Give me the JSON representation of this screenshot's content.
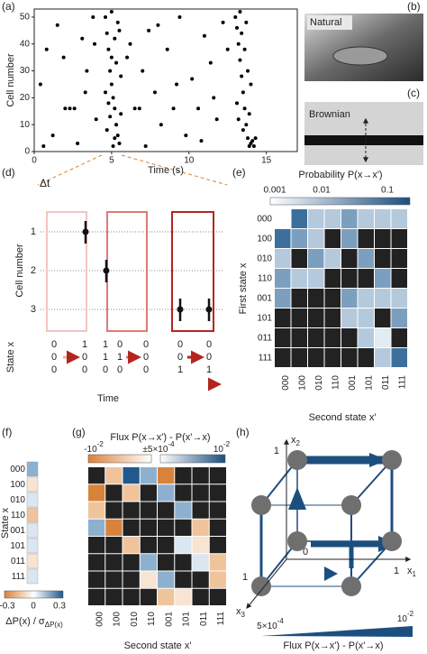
{
  "chart_data": {
    "type": "scatter",
    "panel": "(a)",
    "xlabel": "Time (s)",
    "ylabel": "Cell number",
    "xlim": [
      0,
      17
    ],
    "ylim": [
      0,
      53
    ],
    "xticks": [
      0,
      5,
      10,
      15
    ],
    "yticks": [
      0,
      10,
      20,
      30,
      40,
      50
    ],
    "color": "#000000",
    "points": [
      [
        0.4,
        25
      ],
      [
        0.8,
        38
      ],
      [
        1.5,
        47
      ],
      [
        2.0,
        16
      ],
      [
        2.3,
        16
      ],
      [
        2.6,
        16
      ],
      [
        3.1,
        42
      ],
      [
        3.4,
        30
      ],
      [
        1.2,
        6
      ],
      [
        2.8,
        3
      ],
      [
        3.8,
        50
      ],
      [
        3.9,
        40
      ],
      [
        0.6,
        2
      ],
      [
        1.9,
        35
      ],
      [
        3.3,
        22
      ],
      [
        4.0,
        12
      ],
      [
        4.6,
        50
      ],
      [
        4.7,
        44
      ],
      [
        4.8,
        38
      ],
      [
        4.9,
        30
      ],
      [
        5.0,
        25
      ],
      [
        5.1,
        20
      ],
      [
        5.2,
        16
      ],
      [
        5.3,
        10
      ],
      [
        5.4,
        6
      ],
      [
        5.5,
        3
      ],
      [
        4.7,
        8
      ],
      [
        4.9,
        13
      ],
      [
        5.0,
        35
      ],
      [
        5.2,
        42
      ],
      [
        5.4,
        48
      ],
      [
        5.6,
        28
      ],
      [
        4.8,
        18
      ],
      [
        5.1,
        2
      ],
      [
        5.3,
        33
      ],
      [
        5.5,
        45
      ],
      [
        4.6,
        22
      ],
      [
        5.0,
        52
      ],
      [
        5.2,
        5
      ],
      [
        5.6,
        14
      ],
      [
        6.2,
        40
      ],
      [
        6.5,
        16
      ],
      [
        6.8,
        16
      ],
      [
        7.0,
        30
      ],
      [
        7.4,
        45
      ],
      [
        7.8,
        22
      ],
      [
        8.2,
        10
      ],
      [
        8.6,
        38
      ],
      [
        9.0,
        16
      ],
      [
        9.4,
        50
      ],
      [
        9.8,
        6
      ],
      [
        10.2,
        27
      ],
      [
        10.6,
        16
      ],
      [
        11.0,
        43
      ],
      [
        11.4,
        33
      ],
      [
        11.8,
        12
      ],
      [
        12.2,
        48
      ],
      [
        6.0,
        35
      ],
      [
        7.2,
        2
      ],
      [
        8.0,
        47
      ],
      [
        9.2,
        25
      ],
      [
        10.8,
        4
      ],
      [
        11.6,
        20
      ],
      [
        12.5,
        38
      ],
      [
        13.0,
        50
      ],
      [
        13.1,
        46
      ],
      [
        13.2,
        40
      ],
      [
        13.3,
        34
      ],
      [
        13.4,
        28
      ],
      [
        13.5,
        22
      ],
      [
        13.6,
        16
      ],
      [
        13.7,
        10
      ],
      [
        13.8,
        5
      ],
      [
        13.9,
        2
      ],
      [
        14.0,
        3
      ],
      [
        14.1,
        4
      ],
      [
        14.2,
        2
      ],
      [
        13.2,
        12
      ],
      [
        13.4,
        44
      ],
      [
        13.6,
        38
      ],
      [
        13.8,
        30
      ],
      [
        14.0,
        25
      ],
      [
        13.1,
        18
      ],
      [
        13.5,
        8
      ],
      [
        14.3,
        5
      ],
      [
        13.3,
        52
      ],
      [
        13.7,
        48
      ],
      [
        13.9,
        14
      ]
    ]
  },
  "panel_b": {
    "label": "(b)",
    "caption": "Natural"
  },
  "panel_c": {
    "label": "(c)",
    "caption": "Brownian"
  },
  "panel_d": {
    "label": "(d)",
    "delta": "Δt",
    "ylabel": "Cell number",
    "ticks": [
      "1",
      "2",
      "3"
    ],
    "state_label": "State x",
    "time": "Time",
    "states": [
      [
        "0",
        "1",
        "1",
        "0",
        "0",
        "0",
        "0"
      ],
      [
        "0",
        "0",
        "1",
        "1",
        "0",
        "0",
        "0"
      ],
      [
        "0",
        "0",
        "0",
        "0",
        "0",
        "1",
        "1"
      ]
    ]
  },
  "states": [
    "000",
    "100",
    "010",
    "110",
    "001",
    "101",
    "011",
    "111"
  ],
  "palette": {
    "w": "#ffffff",
    "p": "#e3ebf3",
    "l": "#b5c9dc",
    "m": "#7c9fc0",
    "d": "#3d6f9d",
    "k": "#222222",
    "o": "#d9833a",
    "q": "#f0c49b",
    "r": "#f8e4d2",
    "s": "#dbe6f0",
    "b": "#8db0cf",
    "B": "#21598c"
  },
  "panel_e": {
    "label": "(e)",
    "title": "Probability P(x→x')",
    "scale": [
      "0.001",
      "0.01",
      "0.1"
    ],
    "ylabel": "First state x",
    "xlabel": "Second state x'",
    "cells": [
      "wdllmlll",
      "dmlkmkkk",
      "lkmlkmkk",
      "mllkkkmk",
      "mkkkmlll",
      "kkkkllkm",
      "kkkkklpk",
      "kkkkkkld"
    ]
  },
  "panel_f": {
    "label": "(f)",
    "ylabel": "State x",
    "cells": "brsqssrs",
    "scale": [
      "-0.3",
      "0",
      "0.3"
    ],
    "caption": {
      "text": "ΔP(x) / σ",
      "sub": "ΔP(x)"
    }
  },
  "panel_g": {
    "label": "(g)",
    "title": "Flux P(x→x') - P(x'→x)",
    "xlabel": "Second state x'",
    "scale": [
      {
        "text": "-10",
        "sup": "-2"
      },
      {
        "text": "±5×10",
        "sup": "-4"
      },
      {
        "text": "10",
        "sup": "-2"
      }
    ],
    "cells": [
      "kqBbokkk",
      "okqkbkkk",
      "qkkkkbkk",
      "bokkkkqk",
      "kkqkksrk",
      "kkkbkksq",
      "kkkrbkkq",
      "kkkkqrkk"
    ]
  },
  "panel_h": {
    "label": "(h)",
    "axis_x1": {
      "text": "x",
      "sub": "1"
    },
    "axis_x2": {
      "text": "x",
      "sub": "2"
    },
    "axis_x3": {
      "text": "x",
      "sub": "3"
    },
    "one_x1": "1",
    "one_x2": "1",
    "one_x3": "1",
    "zero": "0",
    "scale": [
      {
        "text": "5×10",
        "sup": "-4"
      },
      {
        "text": "10",
        "sup": "-2"
      }
    ],
    "caption": "Flux P(x→x') - P(x'→x)"
  }
}
